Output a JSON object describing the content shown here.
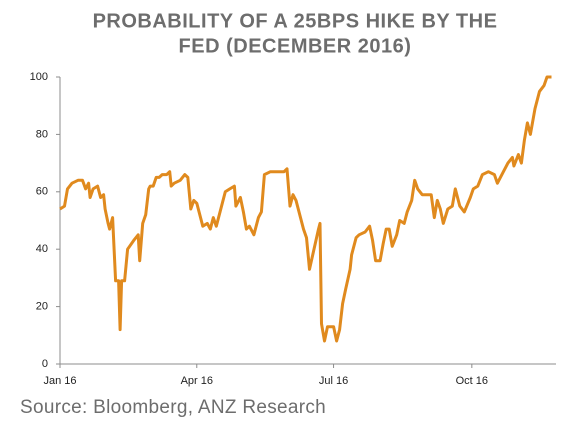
{
  "chart_data": {
    "type": "line",
    "title": [
      "PROBABILITY OF A 25BPS HIKE BY THE",
      "FED (DECEMBER 2016)"
    ],
    "source": "Source: Bloomberg, ANZ Research",
    "color": "#e08a1e",
    "xlim": [
      0,
      330
    ],
    "xticks": [
      {
        "value": 0,
        "label": "Jan 16"
      },
      {
        "value": 91,
        "label": "Apr 16"
      },
      {
        "value": 182,
        "label": "Jul 16"
      },
      {
        "value": 274,
        "label": "Oct 16"
      }
    ],
    "ylim": [
      0,
      100
    ],
    "yticks": [
      0,
      20,
      40,
      60,
      80,
      100
    ],
    "grid": false,
    "x": [
      0,
      3,
      5,
      8,
      12,
      15,
      17,
      19,
      20,
      22,
      25,
      27,
      29,
      30,
      32,
      33,
      35,
      37,
      39,
      40,
      41,
      43,
      45,
      49,
      52,
      53,
      55,
      57,
      59,
      60,
      62,
      64,
      66,
      68,
      71,
      73,
      74,
      76,
      80,
      83,
      85,
      87,
      89,
      91,
      93,
      95,
      98,
      100,
      102,
      104,
      106,
      110,
      113,
      116,
      117,
      120,
      122,
      124,
      126,
      129,
      132,
      134,
      136,
      140,
      143,
      146,
      149,
      151,
      153,
      155,
      157,
      160,
      162,
      164,
      166,
      169,
      172,
      173,
      174,
      176,
      178,
      182,
      184,
      186,
      188,
      190,
      193,
      194,
      197,
      199,
      203,
      206,
      208,
      210,
      213,
      215,
      217,
      219,
      221,
      224,
      226,
      229,
      231,
      234,
      236,
      238,
      241,
      245,
      247,
      249,
      251,
      253,
      255,
      258,
      261,
      263,
      266,
      269,
      273,
      275,
      278,
      281,
      285,
      289,
      291,
      295,
      298,
      301,
      302,
      305,
      307,
      309,
      311,
      313,
      316,
      319,
      322,
      324,
      327
    ],
    "values": [
      54,
      55,
      61,
      63,
      64,
      64,
      61,
      63,
      58,
      61,
      62,
      58,
      59,
      54,
      49,
      47,
      51,
      29,
      29,
      12,
      29,
      29,
      40,
      43,
      45,
      36,
      49,
      52,
      61,
      62,
      62,
      65,
      65,
      66,
      66,
      67,
      62,
      63,
      64,
      66,
      65,
      54,
      57,
      56,
      52,
      48,
      49,
      47,
      51,
      48,
      52,
      60,
      61,
      62,
      55,
      58,
      53,
      47,
      48,
      45,
      51,
      53,
      66,
      67,
      67,
      67,
      67,
      68,
      55,
      59,
      57,
      51,
      47,
      44,
      33,
      40,
      47,
      49,
      14,
      8,
      13,
      13,
      8,
      12,
      21,
      26,
      33,
      38,
      44,
      45,
      46,
      48,
      43,
      36,
      36,
      42,
      47,
      47,
      41,
      45,
      50,
      49,
      53,
      57,
      64,
      61,
      59,
      59,
      59,
      51,
      57,
      54,
      49,
      54,
      55,
      61,
      55,
      53,
      58,
      61,
      62,
      66,
      67,
      66,
      63,
      67,
      70,
      72,
      69,
      73,
      70,
      78,
      84,
      80,
      89,
      95,
      97,
      100,
      100
    ]
  }
}
